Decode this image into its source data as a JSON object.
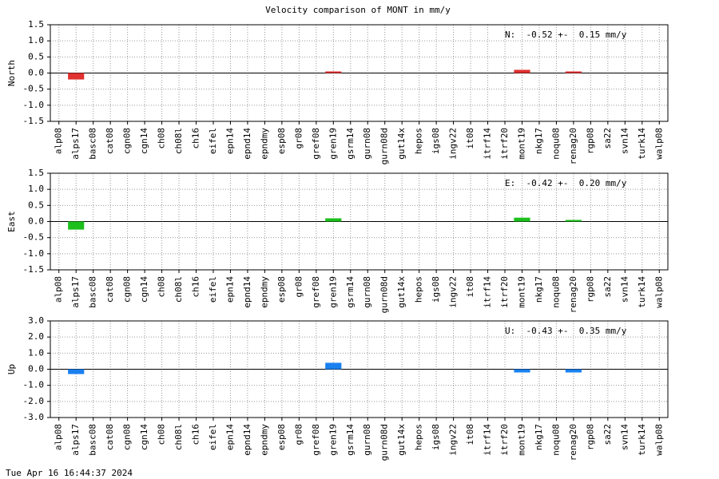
{
  "title": "Velocity comparison of MONT in mm/y",
  "timestamp": "Tue Apr 16 16:44:37 2024",
  "chart_data": [
    {
      "type": "bar",
      "ylabel": "North",
      "annotation": "N:  -0.52 +-  0.15 mm/y",
      "color": "#e03030",
      "grid": true,
      "categories": [
        "alp08",
        "alps17",
        "basc08",
        "cat08",
        "cgn08",
        "cgn14",
        "ch08",
        "ch08l",
        "ch16",
        "eifel",
        "epn14",
        "epnd14",
        "epndmy",
        "esp08",
        "gr08",
        "gref08",
        "gren19",
        "gsrm14",
        "gurn08",
        "gurn08d",
        "gut14x",
        "hepos",
        "igs08",
        "ingv22",
        "it08",
        "itrf14",
        "itrf20",
        "mont19",
        "nkg17",
        "noqu08",
        "renag20",
        "rgp08",
        "sa22",
        "svn14",
        "turk14",
        "walp08"
      ],
      "values": [
        null,
        -0.2,
        null,
        null,
        null,
        null,
        null,
        null,
        null,
        null,
        null,
        null,
        null,
        null,
        null,
        null,
        0.05,
        null,
        null,
        null,
        null,
        null,
        null,
        null,
        null,
        null,
        null,
        0.1,
        null,
        null,
        0.05,
        null,
        null,
        null,
        null,
        null
      ],
      "ylim": [
        -1.5,
        1.5
      ],
      "yticks": [
        {
          "value": 1.5,
          "label": "1.5"
        },
        {
          "value": 1,
          "label": "1.0"
        },
        {
          "value": 0.5,
          "label": "0.5"
        },
        {
          "value": 0,
          "label": "0.0"
        },
        {
          "value": -0.5,
          "label": "-0.5"
        },
        {
          "value": -1,
          "label": "-1.0"
        },
        {
          "value": -1.5,
          "label": "-1.5"
        }
      ]
    },
    {
      "type": "bar",
      "ylabel": "East",
      "annotation": "E:  -0.42 +-  0.20 mm/y",
      "color": "#1cbf1c",
      "grid": true,
      "categories": [
        "alp08",
        "alps17",
        "basc08",
        "cat08",
        "cgn08",
        "cgn14",
        "ch08",
        "ch08l",
        "ch16",
        "eifel",
        "epn14",
        "epnd14",
        "epndmy",
        "esp08",
        "gr08",
        "gref08",
        "gren19",
        "gsrm14",
        "gurn08",
        "gurn08d",
        "gut14x",
        "hepos",
        "igs08",
        "ingv22",
        "it08",
        "itrf14",
        "itrf20",
        "mont19",
        "nkg17",
        "noqu08",
        "renag20",
        "rgp08",
        "sa22",
        "svn14",
        "turk14",
        "walp08"
      ],
      "values": [
        null,
        -0.25,
        null,
        null,
        null,
        null,
        null,
        null,
        null,
        null,
        null,
        null,
        null,
        null,
        null,
        null,
        0.1,
        null,
        null,
        null,
        null,
        null,
        null,
        null,
        null,
        null,
        null,
        0.12,
        null,
        null,
        0.05,
        null,
        null,
        null,
        null,
        null
      ],
      "ylim": [
        -1.5,
        1.5
      ],
      "yticks": [
        {
          "value": 1.5,
          "label": "1.5"
        },
        {
          "value": 1,
          "label": "1.0"
        },
        {
          "value": 0.5,
          "label": "0.5"
        },
        {
          "value": 0,
          "label": "0.0"
        },
        {
          "value": -0.5,
          "label": "-0.5"
        },
        {
          "value": -1,
          "label": "-1.0"
        },
        {
          "value": -1.5,
          "label": "-1.5"
        }
      ]
    },
    {
      "type": "bar",
      "ylabel": "Up",
      "annotation": "U:  -0.43 +-  0.35 mm/y",
      "color": "#1a80f0",
      "grid": true,
      "categories": [
        "alp08",
        "alps17",
        "basc08",
        "cat08",
        "cgn08",
        "cgn14",
        "ch08",
        "ch08l",
        "ch16",
        "eifel",
        "epn14",
        "epnd14",
        "epndmy",
        "esp08",
        "gr08",
        "gref08",
        "gren19",
        "gsrm14",
        "gurn08",
        "gurn08d",
        "gut14x",
        "hepos",
        "igs08",
        "ingv22",
        "it08",
        "itrf14",
        "itrf20",
        "mont19",
        "nkg17",
        "noqu08",
        "renag20",
        "rgp08",
        "sa22",
        "svn14",
        "turk14",
        "walp08"
      ],
      "values": [
        null,
        -0.3,
        null,
        null,
        null,
        null,
        null,
        null,
        null,
        null,
        null,
        null,
        null,
        null,
        null,
        null,
        0.4,
        null,
        null,
        null,
        null,
        null,
        null,
        null,
        null,
        null,
        null,
        -0.2,
        null,
        null,
        -0.2,
        null,
        null,
        null,
        null,
        null
      ],
      "ylim": [
        -3,
        3
      ],
      "yticks": [
        {
          "value": 3,
          "label": "3.0"
        },
        {
          "value": 2,
          "label": "2.0"
        },
        {
          "value": 1,
          "label": "1.0"
        },
        {
          "value": 0,
          "label": "0.0"
        },
        {
          "value": -1,
          "label": "-1.0"
        },
        {
          "value": -2,
          "label": "-2.0"
        },
        {
          "value": -3,
          "label": "-3.0"
        }
      ]
    }
  ]
}
